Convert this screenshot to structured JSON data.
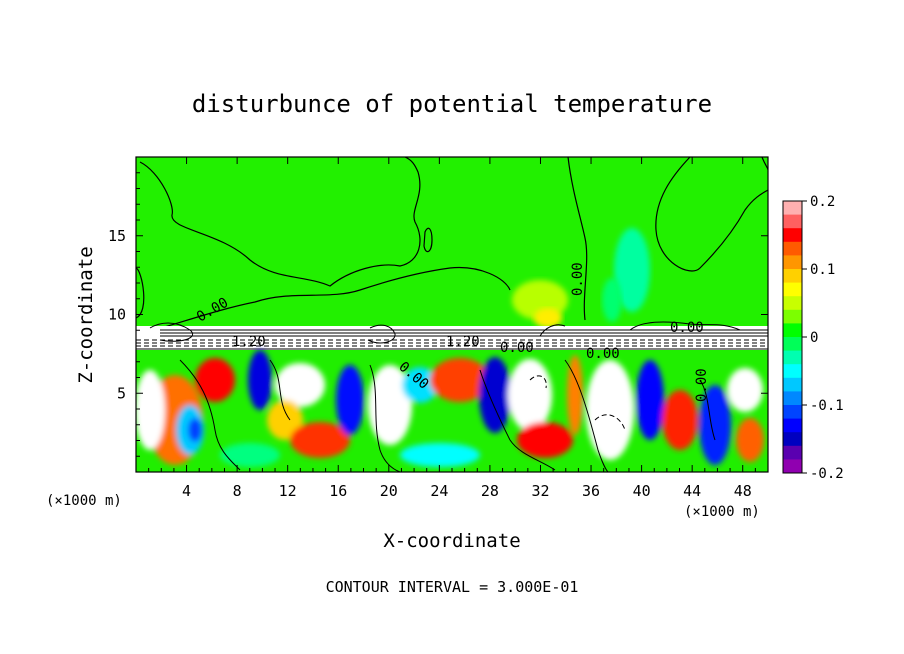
{
  "chart_data": {
    "type": "heatmap",
    "title": "disturbunce of potential temperature",
    "xlabel": "X-coordinate",
    "ylabel": "Z-coordinate",
    "x_unit_left": "(×1000 m)",
    "x_unit_right": "(×1000 m)",
    "xlim": [
      0,
      50
    ],
    "ylim": [
      0,
      20
    ],
    "x_ticks": [
      4,
      8,
      12,
      16,
      20,
      24,
      28,
      32,
      36,
      40,
      44,
      48
    ],
    "y_ticks": [
      5,
      10,
      15
    ],
    "colorbar": {
      "min": -0.2,
      "max": 0.2,
      "ticks": [
        "0.2",
        "0.1",
        "0",
        "-0.1",
        "-0.2"
      ],
      "tick_values": [
        0.2,
        0.1,
        0,
        -0.1,
        -0.2
      ],
      "colors": [
        "#ffb0b0",
        "#ff6060",
        "#ff0000",
        "#ff5a00",
        "#ff9600",
        "#ffd000",
        "#ffff00",
        "#c8ff00",
        "#7cff00",
        "#00ff00",
        "#00ff58",
        "#00ffb0",
        "#00ffff",
        "#00c8ff",
        "#0088ff",
        "#0044ff",
        "#0000ff",
        "#0000c0",
        "#5a00b0",
        "#9000b0"
      ]
    },
    "contour_labels": [
      "0.00",
      "1.20",
      "0.00",
      "1.20",
      "0.00",
      "0.00",
      "0.00",
      "0.00",
      "0.00"
    ],
    "footer": "CONTOUR INTERVAL = 3.000E-01"
  }
}
